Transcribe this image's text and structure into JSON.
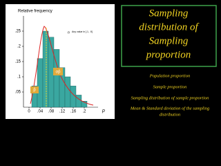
{
  "chart_data": {
    "type": "histogram",
    "y_label": "Relative frequency",
    "x_label": "p",
    "bins": [
      0.01,
      0.03,
      0.05,
      0.07,
      0.09,
      0.11,
      0.13,
      0.15,
      0.17,
      0.19,
      0.21
    ],
    "counts": [
      0.07,
      0.16,
      0.25,
      0.23,
      0.19,
      0.13,
      0.1,
      0.07,
      0.04,
      0.02
    ],
    "color": "#3aa7a0",
    "xlim": [
      -0.02,
      0.24
    ],
    "ylim": [
      0,
      0.3
    ],
    "xticks": [
      0,
      {
        "value": 0.04,
        "label": ".04"
      },
      {
        "value": 0.08,
        "label": ".08"
      },
      {
        "value": 0.12,
        "label": ".12"
      },
      {
        "value": 0.16,
        "label": ".16"
      },
      {
        "value": 0.2,
        "label": ".2"
      }
    ],
    "yticks": [
      {
        "value": 0.05,
        "label": ".05"
      },
      {
        "value": 0.1,
        "label": ".1"
      },
      {
        "value": 0.15,
        "label": ".15"
      },
      {
        "value": 0.2,
        "label": ".2"
      },
      {
        "value": 0.25,
        "label": ".25"
      }
    ],
    "annotations": [
      "σp̂",
      "p̂",
      "n",
      "Any value in [.1, .9]"
    ]
  },
  "slide": {
    "title_lines": [
      "Sampling",
      "distribution of",
      "Sampling",
      "proportion"
    ],
    "topics": [
      "Population proportion",
      "Sample proportion",
      "Sampling distribution of sample proportion",
      "Mean & Standard deviation of the sampling",
      "distribution"
    ]
  }
}
